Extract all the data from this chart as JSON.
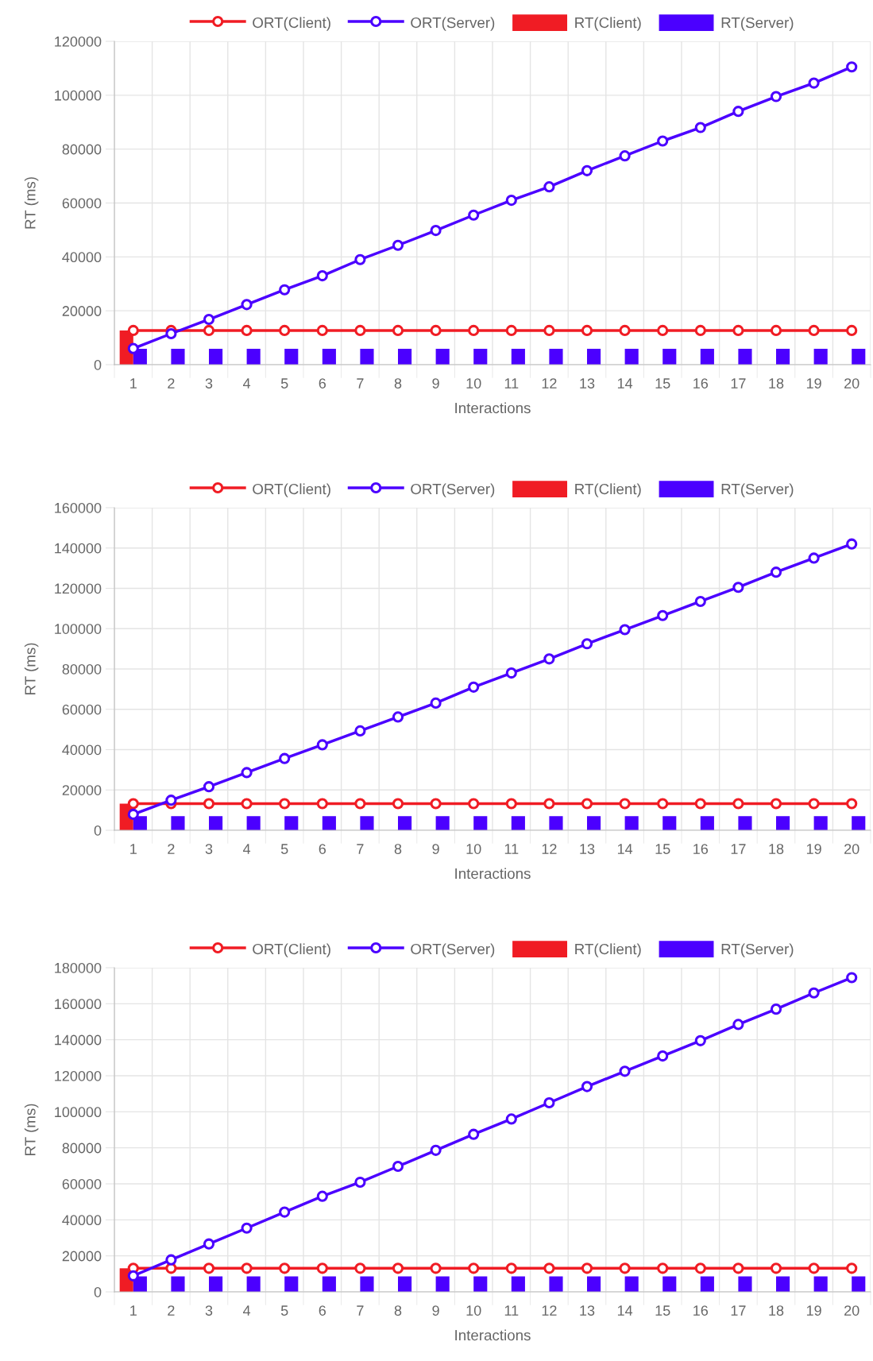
{
  "chart_data": [
    {
      "type": "bar",
      "xlabel": "Interactions",
      "ylabel": "RT (ms)",
      "categories": [
        "1",
        "2",
        "3",
        "4",
        "5",
        "6",
        "7",
        "8",
        "9",
        "10",
        "11",
        "12",
        "13",
        "14",
        "15",
        "16",
        "17",
        "18",
        "19",
        "20"
      ],
      "ylim": [
        0,
        120000
      ],
      "yticks": [
        0,
        20000,
        40000,
        60000,
        80000,
        100000,
        120000
      ],
      "grid": true,
      "legend": "top",
      "marker": "circle",
      "series": [
        {
          "name": "ORT(Client)",
          "type": "line",
          "color": "#f01c24",
          "values": [
            12700,
            12700,
            12700,
            12700,
            12700,
            12700,
            12700,
            12700,
            12700,
            12700,
            12700,
            12700,
            12700,
            12700,
            12700,
            12700,
            12700,
            12700,
            12700,
            12700
          ]
        },
        {
          "name": "ORT(Server)",
          "type": "line",
          "color": "#4b00ff",
          "values": [
            6000,
            11500,
            16800,
            22300,
            27800,
            33000,
            39000,
            44300,
            49800,
            55500,
            61000,
            66000,
            72000,
            77500,
            83000,
            88000,
            94000,
            99500,
            104500,
            110500
          ]
        },
        {
          "name": "RT(Client)",
          "type": "bar",
          "color": "#f01c24",
          "values": [
            12700,
            0,
            0,
            0,
            0,
            0,
            0,
            0,
            0,
            0,
            0,
            0,
            0,
            0,
            0,
            0,
            0,
            0,
            0,
            0
          ]
        },
        {
          "name": "RT(Server)",
          "type": "bar",
          "color": "#4b00ff",
          "values": [
            5900,
            5900,
            5900,
            5900,
            5900,
            5900,
            5900,
            5900,
            5900,
            5900,
            5900,
            5900,
            5900,
            5900,
            5900,
            5900,
            5900,
            5900,
            5900,
            5900
          ]
        }
      ]
    },
    {
      "type": "bar",
      "xlabel": "Interactions",
      "ylabel": "RT (ms)",
      "categories": [
        "1",
        "2",
        "3",
        "4",
        "5",
        "6",
        "7",
        "8",
        "9",
        "10",
        "11",
        "12",
        "13",
        "14",
        "15",
        "16",
        "17",
        "18",
        "19",
        "20"
      ],
      "ylim": [
        0,
        160000
      ],
      "yticks": [
        0,
        20000,
        40000,
        60000,
        80000,
        100000,
        120000,
        140000,
        160000
      ],
      "grid": true,
      "legend": "top",
      "marker": "circle",
      "series": [
        {
          "name": "ORT(Client)",
          "type": "line",
          "color": "#f01c24",
          "values": [
            13200,
            13200,
            13200,
            13200,
            13200,
            13200,
            13200,
            13200,
            13200,
            13200,
            13200,
            13200,
            13200,
            13200,
            13200,
            13200,
            13200,
            13200,
            13200,
            13200
          ]
        },
        {
          "name": "ORT(Server)",
          "type": "line",
          "color": "#4b00ff",
          "values": [
            7900,
            14900,
            21600,
            28600,
            35600,
            42400,
            49300,
            56200,
            63100,
            71000,
            78000,
            85000,
            92500,
            99500,
            106500,
            113500,
            120500,
            128000,
            135000,
            142000
          ]
        },
        {
          "name": "RT(Client)",
          "type": "bar",
          "color": "#f01c24",
          "values": [
            13200,
            0,
            0,
            0,
            0,
            0,
            0,
            0,
            0,
            0,
            0,
            0,
            0,
            0,
            0,
            0,
            0,
            0,
            0,
            0
          ]
        },
        {
          "name": "RT(Server)",
          "type": "bar",
          "color": "#4b00ff",
          "values": [
            7000,
            7000,
            7000,
            7000,
            7000,
            7000,
            7000,
            7000,
            7000,
            7000,
            7000,
            7000,
            7000,
            7000,
            7000,
            7000,
            7000,
            7000,
            7000,
            7000
          ]
        }
      ]
    },
    {
      "type": "bar",
      "xlabel": "Interactions",
      "ylabel": "RT (ms)",
      "categories": [
        "1",
        "2",
        "3",
        "4",
        "5",
        "6",
        "7",
        "8",
        "9",
        "10",
        "11",
        "12",
        "13",
        "14",
        "15",
        "16",
        "17",
        "18",
        "19",
        "20"
      ],
      "ylim": [
        0,
        180000
      ],
      "yticks": [
        0,
        20000,
        40000,
        60000,
        80000,
        100000,
        120000,
        140000,
        160000,
        180000
      ],
      "grid": true,
      "legend": "top",
      "marker": "circle",
      "series": [
        {
          "name": "ORT(Client)",
          "type": "line",
          "color": "#f01c24",
          "values": [
            13100,
            13100,
            13100,
            13100,
            13100,
            13100,
            13100,
            13100,
            13100,
            13100,
            13100,
            13100,
            13100,
            13100,
            13100,
            13100,
            13100,
            13100,
            13100,
            13100
          ]
        },
        {
          "name": "ORT(Server)",
          "type": "line",
          "color": "#4b00ff",
          "values": [
            8900,
            17800,
            26600,
            35400,
            44300,
            53100,
            60900,
            69700,
            78600,
            87500,
            96000,
            105000,
            114000,
            122500,
            131000,
            139500,
            148500,
            157000,
            166000,
            174500
          ]
        },
        {
          "name": "RT(Client)",
          "type": "bar",
          "color": "#f01c24",
          "values": [
            13100,
            0,
            0,
            0,
            0,
            0,
            0,
            0,
            0,
            0,
            0,
            0,
            0,
            0,
            0,
            0,
            0,
            0,
            0,
            0
          ]
        },
        {
          "name": "RT(Server)",
          "type": "bar",
          "color": "#4b00ff",
          "values": [
            8600,
            8600,
            8600,
            8600,
            8600,
            8600,
            8600,
            8600,
            8600,
            8600,
            8600,
            8600,
            8600,
            8600,
            8600,
            8600,
            8600,
            8600,
            8600,
            8600
          ]
        }
      ]
    }
  ]
}
